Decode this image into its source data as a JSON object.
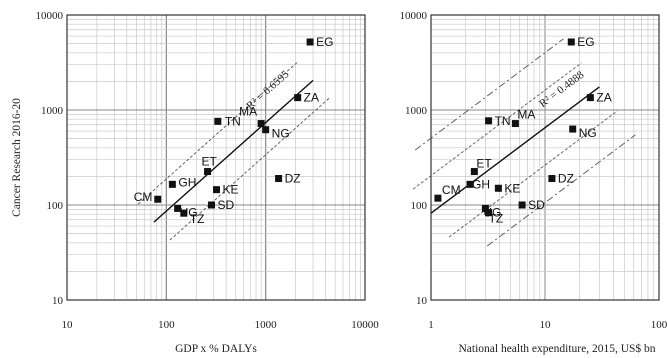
{
  "chart_data": [
    {
      "type": "scatter",
      "xlabel": "GDP x % DALYs",
      "ylabel": "Cancer Research 2016-20",
      "xscale": "log",
      "yscale": "log",
      "xlim": [
        10,
        10000
      ],
      "ylim": [
        10,
        10000
      ],
      "grid": true,
      "r2_label": "R² = 0.6595",
      "x_ticks": [
        "10",
        "100",
        "1000",
        "10000"
      ],
      "y_ticks": [
        "10",
        "100",
        "1000",
        "10000"
      ],
      "points": [
        {
          "label": "EG",
          "x": 2800,
          "y": 5200
        },
        {
          "label": "ZA",
          "x": 2100,
          "y": 1350
        },
        {
          "label": "MA",
          "x": 900,
          "y": 720
        },
        {
          "label": "NG",
          "x": 1000,
          "y": 620
        },
        {
          "label": "TN",
          "x": 330,
          "y": 760
        },
        {
          "label": "DZ",
          "x": 1350,
          "y": 190
        },
        {
          "label": "ET",
          "x": 260,
          "y": 225
        },
        {
          "label": "KE",
          "x": 320,
          "y": 145
        },
        {
          "label": "GH",
          "x": 115,
          "y": 165
        },
        {
          "label": "CM",
          "x": 82,
          "y": 115
        },
        {
          "label": "UG",
          "x": 130,
          "y": 92
        },
        {
          "label": "TZ",
          "x": 150,
          "y": 82
        },
        {
          "label": "SD",
          "x": 285,
          "y": 100
        }
      ],
      "fit": {
        "x": [
          75,
          3000
        ],
        "y": [
          66,
          2050
        ]
      }
    },
    {
      "type": "scatter",
      "xlabel": "National health expenditure, 2015, US$ bn",
      "ylabel": "",
      "xscale": "log",
      "yscale": "log",
      "xlim": [
        1,
        100
      ],
      "ylim": [
        10,
        10000
      ],
      "grid": true,
      "r2_label": "R² = 0.4888",
      "x_ticks": [
        "1",
        "10",
        "100"
      ],
      "y_ticks": [
        "10",
        "100",
        "1000",
        "10000"
      ],
      "points": [
        {
          "label": "EG",
          "x": 17,
          "y": 5200
        },
        {
          "label": "ZA",
          "x": 25,
          "y": 1350
        },
        {
          "label": "MA",
          "x": 5.5,
          "y": 720
        },
        {
          "label": "TN",
          "x": 3.2,
          "y": 770
        },
        {
          "label": "NG",
          "x": 17.5,
          "y": 630
        },
        {
          "label": "DZ",
          "x": 11.5,
          "y": 190
        },
        {
          "label": "ET",
          "x": 2.4,
          "y": 225
        },
        {
          "label": "GH",
          "x": 2.2,
          "y": 165
        },
        {
          "label": "KE",
          "x": 3.9,
          "y": 150
        },
        {
          "label": "CM",
          "x": 1.15,
          "y": 118
        },
        {
          "label": "UG",
          "x": 3.0,
          "y": 92
        },
        {
          "label": "TZ",
          "x": 3.2,
          "y": 83
        },
        {
          "label": "SD",
          "x": 6.3,
          "y": 100
        }
      ],
      "fit": {
        "x": [
          1,
          30
        ],
        "y": [
          82,
          1750
        ]
      }
    }
  ]
}
